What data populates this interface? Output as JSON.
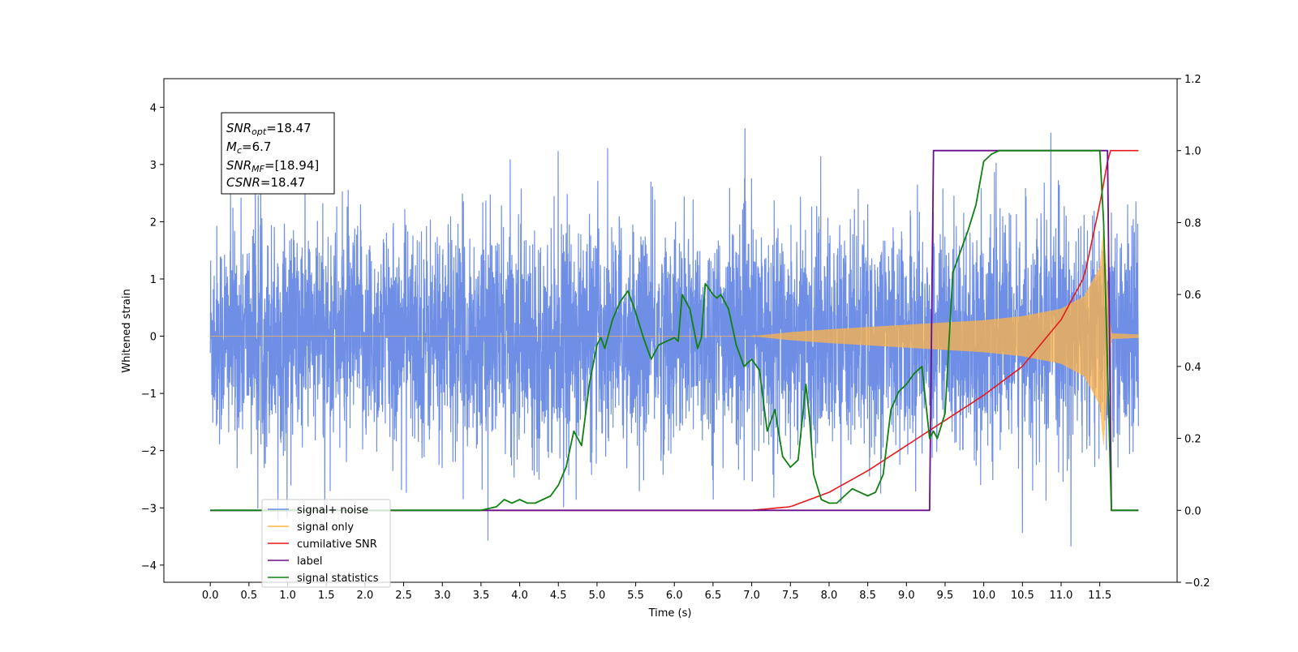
{
  "chart_data": {
    "type": "line",
    "xlabel": "Time (s)",
    "ylabel": "Whitened strain",
    "xlim": [
      -0.6,
      12.5
    ],
    "ylim_left": [
      -4.3,
      4.5
    ],
    "ylim_right": [
      -0.2,
      1.2
    ],
    "x_ticks": [
      "0.0",
      "0.5",
      "1.0",
      "1.5",
      "2.0",
      "2.5",
      "3.0",
      "3.5",
      "4.0",
      "4.5",
      "5.0",
      "5.5",
      "6.0",
      "6.5",
      "7.0",
      "7.5",
      "8.0",
      "8.5",
      "9.0",
      "9.5",
      "10.0",
      "10.5",
      "11.0",
      "11.5"
    ],
    "y_ticks_left": [
      "4",
      "3",
      "2",
      "1",
      "0",
      "−1",
      "−2",
      "−3",
      "−4"
    ],
    "y_ticks_right": [
      "1.2",
      "1.0",
      "0.8",
      "0.6",
      "0.4",
      "0.2",
      "0.0",
      "−0.2"
    ],
    "grid": false,
    "legend_position": "lower-left",
    "annotation": {
      "line1_sym": "SNR",
      "line1_sub": "opt",
      "line1_val": "=18.47",
      "line2_sym": "M",
      "line2_sub": "c",
      "line2_val": "=6.7",
      "line3_sym": "SNR",
      "line3_sub": "MF",
      "line3_val": "=[18.94]",
      "line4_sym": "CSNR",
      "line4_val": "=18.47"
    },
    "series": [
      {
        "name": "signal+ noise",
        "axis": "left",
        "color": "#6f8fe6",
        "description_kind": "noise",
        "noise_sigma": 1.0,
        "x_range": [
          0.0,
          12.0
        ]
      },
      {
        "name": "signal only",
        "axis": "left",
        "color": "#ffb347",
        "description_kind": "chirp",
        "x_range": [
          0.0,
          12.0
        ],
        "envelope_x": [
          0,
          7.0,
          7.5,
          8.0,
          9.0,
          10.0,
          10.5,
          11.0,
          11.3,
          11.5,
          11.55,
          11.62,
          11.65,
          12.0
        ],
        "envelope_y": [
          0,
          0.0,
          0.07,
          0.12,
          0.2,
          0.28,
          0.35,
          0.48,
          0.7,
          1.2,
          1.9,
          0.4,
          0.05,
          0.03
        ]
      },
      {
        "name": "cumilative SNR",
        "axis": "right",
        "color": "#e41a1c",
        "x": [
          0,
          7.0,
          7.5,
          8.0,
          8.5,
          9.0,
          9.5,
          10.0,
          10.5,
          11.0,
          11.3,
          11.5,
          11.6,
          11.62,
          12.0
        ],
        "y": [
          0,
          0.0,
          0.01,
          0.05,
          0.11,
          0.18,
          0.25,
          0.32,
          0.4,
          0.53,
          0.65,
          0.85,
          0.97,
          1.0,
          1.0
        ]
      },
      {
        "name": "label",
        "axis": "right",
        "color": "#6a0f8e",
        "x": [
          0,
          9.3,
          9.35,
          11.6,
          11.65,
          12.0
        ],
        "y": [
          0,
          0,
          1,
          1,
          0,
          0
        ]
      },
      {
        "name": "signal statistics",
        "axis": "right",
        "color": "#108010",
        "x": [
          0,
          2.8,
          3.0,
          3.5,
          3.7,
          3.8,
          3.9,
          4.0,
          4.1,
          4.2,
          4.3,
          4.4,
          4.5,
          4.6,
          4.7,
          4.8,
          4.9,
          5.0,
          5.05,
          5.1,
          5.2,
          5.3,
          5.4,
          5.5,
          5.6,
          5.7,
          5.8,
          5.9,
          6.0,
          6.05,
          6.1,
          6.2,
          6.3,
          6.35,
          6.4,
          6.5,
          6.55,
          6.6,
          6.7,
          6.8,
          6.9,
          7.0,
          7.1,
          7.2,
          7.3,
          7.4,
          7.5,
          7.6,
          7.7,
          7.75,
          7.8,
          7.9,
          8.0,
          8.1,
          8.2,
          8.3,
          8.4,
          8.5,
          8.6,
          8.7,
          8.8,
          8.9,
          9.0,
          9.1,
          9.2,
          9.3,
          9.35,
          9.4,
          9.5,
          9.6,
          9.7,
          9.8,
          9.9,
          10.0,
          10.1,
          10.2,
          10.3,
          11.5,
          11.55,
          11.65,
          12.0
        ],
        "y": [
          0,
          0.0,
          0.0,
          0.0,
          0.01,
          0.03,
          0.02,
          0.03,
          0.02,
          0.02,
          0.03,
          0.04,
          0.07,
          0.12,
          0.22,
          0.18,
          0.35,
          0.46,
          0.48,
          0.45,
          0.53,
          0.58,
          0.61,
          0.55,
          0.48,
          0.42,
          0.46,
          0.47,
          0.48,
          0.47,
          0.6,
          0.56,
          0.45,
          0.48,
          0.63,
          0.6,
          0.59,
          0.6,
          0.56,
          0.46,
          0.4,
          0.42,
          0.39,
          0.22,
          0.28,
          0.15,
          0.12,
          0.14,
          0.35,
          0.25,
          0.1,
          0.03,
          0.02,
          0.02,
          0.04,
          0.06,
          0.05,
          0.04,
          0.05,
          0.1,
          0.28,
          0.33,
          0.35,
          0.38,
          0.4,
          0.2,
          0.22,
          0.2,
          0.27,
          0.66,
          0.72,
          0.78,
          0.85,
          0.97,
          0.99,
          1.0,
          1.0,
          1.0,
          0.8,
          0.0,
          0.0
        ]
      }
    ]
  }
}
